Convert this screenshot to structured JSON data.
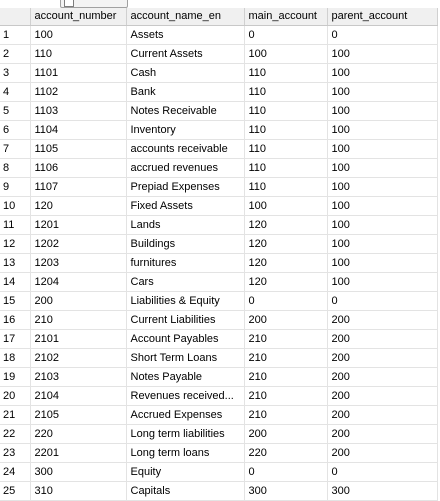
{
  "columns": [
    "account_number",
    "account_name_en",
    "main_account",
    "parent_account"
  ],
  "rows": [
    {
      "n": "1",
      "account_number": "100",
      "account_name_en": "Assets",
      "main_account": "0",
      "parent_account": "0"
    },
    {
      "n": "2",
      "account_number": "110",
      "account_name_en": "Current Assets",
      "main_account": "100",
      "parent_account": "100"
    },
    {
      "n": "3",
      "account_number": "1101",
      "account_name_en": "Cash",
      "main_account": "110",
      "parent_account": "100"
    },
    {
      "n": "4",
      "account_number": "1102",
      "account_name_en": "Bank",
      "main_account": "110",
      "parent_account": "100"
    },
    {
      "n": "5",
      "account_number": "1103",
      "account_name_en": "Notes Receivable",
      "main_account": "110",
      "parent_account": "100"
    },
    {
      "n": "6",
      "account_number": "1104",
      "account_name_en": "Inventory",
      "main_account": "110",
      "parent_account": "100"
    },
    {
      "n": "7",
      "account_number": "1105",
      "account_name_en": "accounts receivable",
      "main_account": "110",
      "parent_account": "100",
      "indent": true
    },
    {
      "n": "8",
      "account_number": "1106",
      "account_name_en": "accrued revenues",
      "main_account": "110",
      "parent_account": "100"
    },
    {
      "n": "9",
      "account_number": "1107",
      "account_name_en": "Prepiad  Expenses",
      "main_account": "110",
      "parent_account": "100"
    },
    {
      "n": "10",
      "account_number": "120",
      "account_name_en": "Fixed Assets",
      "main_account": "100",
      "parent_account": "100"
    },
    {
      "n": "11",
      "account_number": "1201",
      "account_name_en": "Lands",
      "main_account": "120",
      "parent_account": "100"
    },
    {
      "n": "12",
      "account_number": "1202",
      "account_name_en": "Buildings",
      "main_account": "120",
      "parent_account": "100"
    },
    {
      "n": "13",
      "account_number": "1203",
      "account_name_en": "furnitures",
      "main_account": "120",
      "parent_account": "100"
    },
    {
      "n": "14",
      "account_number": "1204",
      "account_name_en": "Cars",
      "main_account": "120",
      "parent_account": "100"
    },
    {
      "n": "15",
      "account_number": "200",
      "account_name_en": "Liabilities & Equity",
      "main_account": "0",
      "parent_account": "0"
    },
    {
      "n": "16",
      "account_number": "210",
      "account_name_en": "Current Liabilities",
      "main_account": "200",
      "parent_account": "200"
    },
    {
      "n": "17",
      "account_number": "2101",
      "account_name_en": "Account Payables",
      "main_account": "210",
      "parent_account": "200"
    },
    {
      "n": "18",
      "account_number": "2102",
      "account_name_en": "Short Term Loans",
      "main_account": "210",
      "parent_account": "200"
    },
    {
      "n": "19",
      "account_number": "2103",
      "account_name_en": "Notes Payable",
      "main_account": "210",
      "parent_account": "200"
    },
    {
      "n": "20",
      "account_number": "2104",
      "account_name_en": "Revenues received...",
      "main_account": "210",
      "parent_account": "200"
    },
    {
      "n": "21",
      "account_number": "2105",
      "account_name_en": "Accrued Expenses",
      "main_account": "210",
      "parent_account": "200"
    },
    {
      "n": "22",
      "account_number": "220",
      "account_name_en": "Long term liabilities",
      "main_account": "200",
      "parent_account": "200"
    },
    {
      "n": "23",
      "account_number": "2201",
      "account_name_en": "Long term loans",
      "main_account": "220",
      "parent_account": "200"
    },
    {
      "n": "24",
      "account_number": "300",
      "account_name_en": "Equity",
      "main_account": "0",
      "parent_account": "0"
    },
    {
      "n": "25",
      "account_number": "310",
      "account_name_en": "Capitals",
      "main_account": "300",
      "parent_account": "300"
    }
  ]
}
